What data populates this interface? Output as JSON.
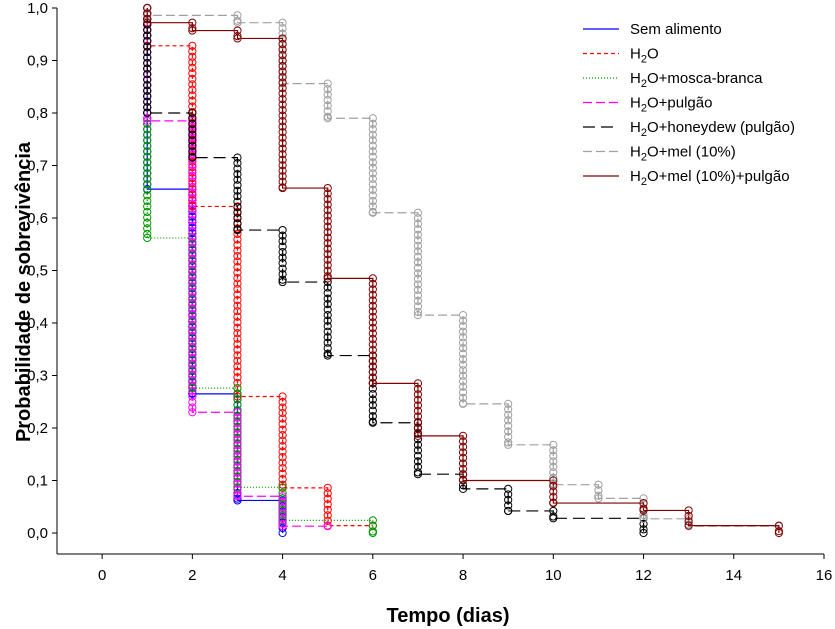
{
  "chart_data": {
    "type": "line",
    "subtype": "kaplan-meier survival step plot with censoring circles",
    "title": "",
    "xlabel": "Tempo (dias)",
    "ylabel": "Probabilidade de sobrevivência",
    "xlim": [
      -1,
      16
    ],
    "ylim": [
      -0.04,
      1.0
    ],
    "xticks": [
      0,
      2,
      4,
      6,
      8,
      10,
      12,
      14,
      16
    ],
    "yticks": [
      0.0,
      0.1,
      0.2,
      0.3,
      0.4,
      0.5,
      0.6,
      0.7,
      0.8,
      0.9,
      1.0
    ],
    "xtick_labels": [
      "0",
      "2",
      "4",
      "6",
      "8",
      "10",
      "12",
      "14",
      "16"
    ],
    "ytick_labels": [
      "0,0",
      "0,1",
      "0,2",
      "0,3",
      "0,4",
      "0,5",
      "0,6",
      "0,7",
      "0,8",
      "0,9",
      "1,0"
    ],
    "grid": false,
    "legend_position": "top-right",
    "series": [
      {
        "name": "Sem alimento",
        "color": "#0000ff",
        "dash": "solid",
        "steps": [
          [
            1,
            0.655
          ],
          [
            2,
            0.265
          ],
          [
            3,
            0.062
          ],
          [
            4,
            0.0
          ]
        ]
      },
      {
        "name": "H2O",
        "legend_parts": [
          "H",
          "2",
          "O"
        ],
        "color": "#ff0000",
        "dash": "4,3",
        "steps": [
          [
            1,
            0.928
          ],
          [
            2,
            0.622
          ],
          [
            3,
            0.26
          ],
          [
            4,
            0.086
          ],
          [
            5,
            0.014
          ],
          [
            6,
            0.014
          ]
        ]
      },
      {
        "name": "H2O+mosca-branca",
        "legend_parts": [
          "H",
          "2",
          "O+mosca-branca"
        ],
        "color": "#009900",
        "dash": "1,2",
        "steps": [
          [
            1,
            0.562
          ],
          [
            2,
            0.276
          ],
          [
            3,
            0.087
          ],
          [
            4,
            0.024
          ],
          [
            6,
            0.0
          ]
        ]
      },
      {
        "name": "H2O+pulgão",
        "legend_parts": [
          "H",
          "2",
          "O+pulgão"
        ],
        "color": "#ff00ff",
        "dash": "9,4",
        "steps": [
          [
            1,
            0.785
          ],
          [
            2,
            0.23
          ],
          [
            3,
            0.07
          ],
          [
            4,
            0.013
          ],
          [
            5,
            0.013
          ]
        ]
      },
      {
        "name": "H2O+honeydew (pulgão)",
        "legend_parts": [
          "H",
          "2",
          "O+honeydew (pulgão)"
        ],
        "color": "#000000",
        "dash": "12,6",
        "steps": [
          [
            1,
            0.8
          ],
          [
            2,
            0.715
          ],
          [
            3,
            0.577
          ],
          [
            4,
            0.478
          ],
          [
            5,
            0.338
          ],
          [
            6,
            0.21
          ],
          [
            7,
            0.112
          ],
          [
            8,
            0.084
          ],
          [
            9,
            0.042
          ],
          [
            10,
            0.028
          ],
          [
            12,
            0.0
          ]
        ]
      },
      {
        "name": "H2O+mel (10%)",
        "legend_parts": [
          "H",
          "2",
          "O+mel (10%)"
        ],
        "color": "#a0a0a0",
        "dash": "9,4",
        "steps": [
          [
            1,
            0.986
          ],
          [
            3,
            0.972
          ],
          [
            4,
            0.856
          ],
          [
            5,
            0.79
          ],
          [
            6,
            0.61
          ],
          [
            7,
            0.415
          ],
          [
            8,
            0.246
          ],
          [
            9,
            0.168
          ],
          [
            10,
            0.092
          ],
          [
            11,
            0.066
          ],
          [
            12,
            0.027
          ],
          [
            13,
            0.013
          ],
          [
            15,
            0.013
          ]
        ]
      },
      {
        "name": "H2O+mel (10%)+pulgão",
        "legend_parts": [
          "H",
          "2",
          "O+mel (10%)+pulgão"
        ],
        "color": "#800000",
        "dash": "solid",
        "steps": [
          [
            1,
            0.972
          ],
          [
            2,
            0.957
          ],
          [
            3,
            0.942
          ],
          [
            4,
            0.657
          ],
          [
            5,
            0.485
          ],
          [
            6,
            0.285
          ],
          [
            7,
            0.185
          ],
          [
            8,
            0.1
          ],
          [
            10,
            0.057
          ],
          [
            12,
            0.043
          ],
          [
            13,
            0.014
          ],
          [
            15,
            0.0
          ]
        ]
      }
    ]
  }
}
